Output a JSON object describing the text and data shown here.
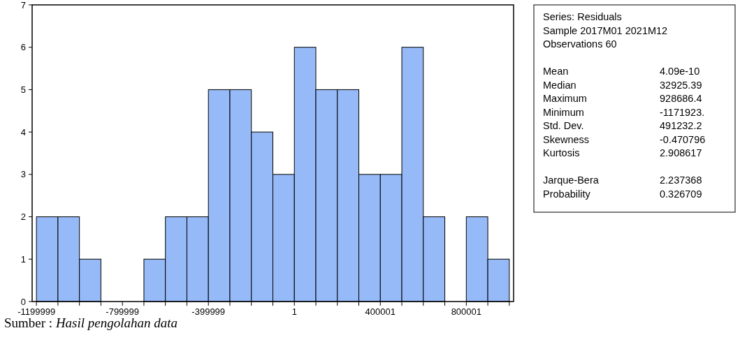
{
  "chart_data": [
    {
      "type": "histogram",
      "color": "#96baf8",
      "bins": [
        -1199999,
        -1099999,
        -999999,
        -899999,
        -799999,
        -699999,
        -599999,
        -499999,
        -399999,
        -299999,
        -199999,
        -99999,
        1,
        100001,
        200001,
        300001,
        400001,
        500001,
        600001,
        700001,
        800001,
        900001,
        1000001
      ],
      "values": [
        2,
        2,
        1,
        0,
        0,
        1,
        2,
        2,
        5,
        5,
        4,
        3,
        6,
        5,
        5,
        3,
        3,
        6,
        2,
        0,
        2,
        1
      ],
      "xlim": [
        -1220000,
        1020000
      ],
      "xticks": [
        -1199999,
        {
          "value": -1099999,
          "label": null
        },
        {
          "value": -999999,
          "label": null
        },
        {
          "value": -899999,
          "label": null
        },
        -799999,
        {
          "value": -699999,
          "label": null
        },
        {
          "value": -599999,
          "label": null
        },
        {
          "value": -499999,
          "label": null
        },
        -399999,
        {
          "value": -299999,
          "label": null
        },
        {
          "value": -199999,
          "label": null
        },
        {
          "value": -99999,
          "label": null
        },
        1,
        {
          "value": 100001,
          "label": null
        },
        {
          "value": 200001,
          "label": null
        },
        {
          "value": 300001,
          "label": null
        },
        400001,
        {
          "value": 500001,
          "label": null
        },
        {
          "value": 600001,
          "label": null
        },
        {
          "value": 700001,
          "label": null
        },
        800001,
        {
          "value": 900001,
          "label": null
        },
        {
          "value": 1000001,
          "label": null
        }
      ],
      "ylim": [
        0,
        7
      ],
      "yticks": [
        0,
        1,
        2,
        3,
        4,
        5,
        6,
        7
      ],
      "grid": false,
      "annotations": [
        "Sumber : Hasil pengolahan data"
      ]
    },
    {
      "type": "other",
      "annotations": [
        "Series: Residuals",
        "Sample 2017M01 2021M12",
        "Observations 60"
      ],
      "categories": [
        "Mean",
        "Median",
        "Maximum",
        "Minimum",
        "Std. Dev.",
        "Skewness",
        "Kurtosis",
        null,
        "Jarque-Bera",
        "Probability"
      ],
      "value_labels": [
        "4.09e-10",
        "32925.39",
        "928686.4",
        "-1171923.",
        "491232.2",
        "-0.470796",
        "2.908617",
        null,
        "2.237368",
        "0.326709"
      ]
    }
  ]
}
